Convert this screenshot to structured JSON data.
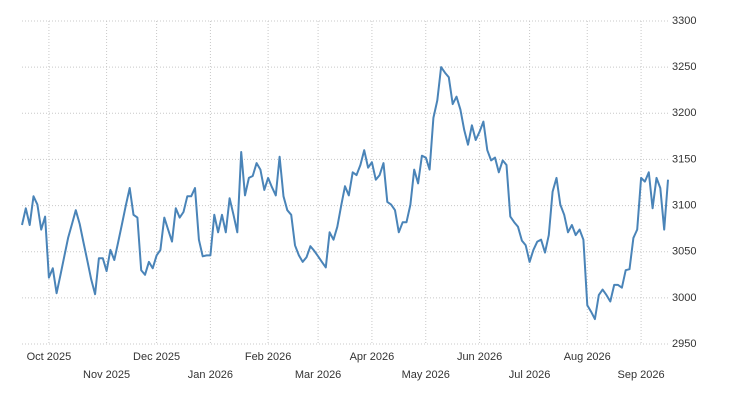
{
  "chart_data": {
    "type": "line",
    "series": [
      {
        "color": "#4a84b8",
        "values": [
          3079,
          3097,
          3079,
          3110,
          3101,
          3074,
          3088,
          3022,
          3032,
          3005,
          3025,
          3045,
          3065,
          3080,
          3095,
          3080,
          3060,
          3040,
          3020,
          3004,
          3043,
          3043,
          3029,
          3052,
          3041,
          3060,
          3080,
          3100,
          3119,
          3090,
          3087,
          3030,
          3025,
          3039,
          3032,
          3046,
          3052,
          3087,
          3074,
          3061,
          3097,
          3087,
          3093,
          3110,
          3110,
          3119,
          3063,
          3045,
          3046,
          3046,
          3090,
          3071,
          3090,
          3071,
          3108,
          3090,
          3071,
          3158,
          3111,
          3130,
          3132,
          3146,
          3139,
          3117,
          3130,
          3120,
          3111,
          3153,
          3110,
          3095,
          3090,
          3057,
          3046,
          3039,
          3044,
          3056,
          3051,
          3045,
          3039,
          3033,
          3071,
          3063,
          3077,
          3100,
          3121,
          3111,
          3136,
          3133,
          3144,
          3160,
          3141,
          3147,
          3128,
          3133,
          3146,
          3104,
          3101,
          3095,
          3071,
          3082,
          3082,
          3101,
          3139,
          3124,
          3154,
          3152,
          3139,
          3195,
          3214,
          3250,
          3244,
          3239,
          3210,
          3218,
          3204,
          3182,
          3166,
          3187,
          3171,
          3180,
          3191,
          3160,
          3149,
          3152,
          3136,
          3149,
          3144,
          3088,
          3082,
          3077,
          3062,
          3057,
          3039,
          3052,
          3061,
          3063,
          3049,
          3068,
          3115,
          3130,
          3101,
          3090,
          3071,
          3079,
          3068,
          3074,
          3063,
          2992,
          2985,
          2977,
          3003,
          3009,
          3003,
          2996,
          3014,
          3014,
          3011,
          3030,
          3031,
          3065,
          3074,
          3130,
          3126,
          3136,
          3097,
          3130,
          3119,
          3074,
          3128
        ]
      }
    ],
    "xlim": [
      0,
      168
    ],
    "xticks": [
      {
        "value": 7,
        "label": "Oct 2025"
      },
      {
        "value": 22,
        "label": "Nov 2025"
      },
      {
        "value": 35,
        "label": "Dec 2025"
      },
      {
        "value": 49,
        "label": "Jan 2026"
      },
      {
        "value": 64,
        "label": "Feb 2026"
      },
      {
        "value": 77,
        "label": "Mar 2026"
      },
      {
        "value": 91,
        "label": "Apr 2026"
      },
      {
        "value": 105,
        "label": "May 2026"
      },
      {
        "value": 119,
        "label": "Jun 2026"
      },
      {
        "value": 132,
        "label": "Jul 2026"
      },
      {
        "value": 147,
        "label": "Aug 2026"
      },
      {
        "value": 161,
        "label": "Sep 2026"
      }
    ],
    "ylim": [
      2950,
      3300
    ],
    "yticks": [
      2950,
      3000,
      3050,
      3100,
      3150,
      3200,
      3250,
      3300
    ],
    "grid": true
  }
}
